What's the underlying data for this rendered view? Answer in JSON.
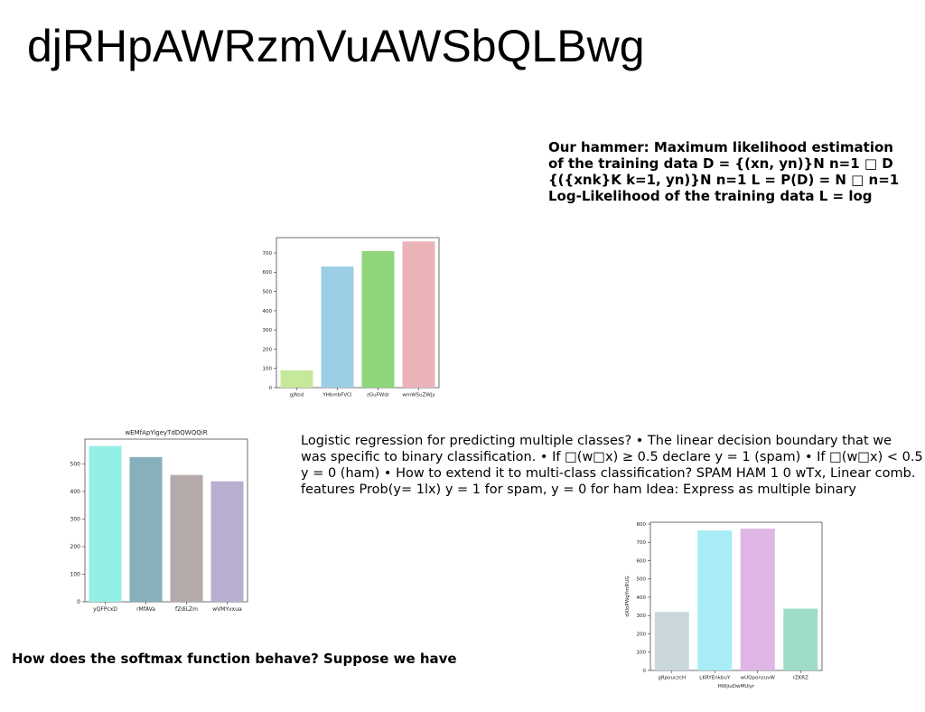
{
  "slide": {
    "title": "djRHpAWRzmVuAWSbQLBwg",
    "hammer_lines": [
      "Our hammer: Maximum likelihood estimation",
      "of the training data D = {(xn, yn)}N n=1 □ D",
      "{({xnk}K k=1, yn)}N n=1 L = P(D) = N □ n=1",
      "Log-Likelihood of the training data L = log"
    ],
    "logistic_lines": [
      "Logistic regression for predicting multiple classes? • The linear decision boundary that we",
      "was specific to binary classification. • If □(w□x) ≥ 0.5 declare y = 1 (spam) • If □(w□x) < 0.5",
      "y = 0 (ham) • How to extend it to multi-class classification? SPAM HAM 1 0 wTx, Linear comb.",
      "features Prob(y= 1lx) y = 1 for spam, y = 0 for ham Idea: Express as multiple binary"
    ],
    "softmax_text": "How does the softmax function behave? Suppose we have"
  },
  "chart_data": [
    {
      "type": "bar",
      "title": "",
      "xlabel": "",
      "ylabel": "",
      "categories": [
        "gjNsd",
        "YHbmbFVCl",
        "zGuFWdr",
        "wmWSuZWjy"
      ],
      "values": [
        90,
        630,
        710,
        760
      ],
      "ylim": [
        0,
        780
      ],
      "yticks": [
        0,
        100,
        200,
        300,
        400,
        500,
        600,
        700
      ],
      "colors": [
        "#c5e89a",
        "#9ccfe6",
        "#8fd67a",
        "#eab3b8"
      ],
      "grid": false
    },
    {
      "type": "bar",
      "title": "wEMfApYigeyTdDQWQQiR",
      "xlabel": "",
      "ylabel": "",
      "categories": [
        "yQFPcxD",
        "rMfAVa",
        "fZdiLZm",
        "wVMYvxua"
      ],
      "values": [
        565,
        525,
        460,
        437
      ],
      "ylim": [
        0,
        590
      ],
      "yticks": [
        0,
        100,
        200,
        300,
        400,
        500
      ],
      "colors": [
        "#93efe5",
        "#86b0bb",
        "#b5aaaa",
        "#b8aed0"
      ],
      "grid": false
    },
    {
      "type": "bar",
      "title": "",
      "xlabel": "HWjiuDwMUiyr",
      "ylabel": "dXloPWgYmRUG",
      "categories": [
        "gRpouczcH",
        "LKRYEnkbuY",
        "wUQponzuvW",
        "rZKRZ"
      ],
      "values": [
        320,
        765,
        775,
        338
      ],
      "ylim": [
        0,
        810
      ],
      "yticks": [
        0,
        100,
        200,
        300,
        400,
        500,
        600,
        700,
        800
      ],
      "colors": [
        "#cad8dc",
        "#a8ecf6",
        "#e0b6e6",
        "#a0ddc9"
      ],
      "grid": false
    }
  ]
}
